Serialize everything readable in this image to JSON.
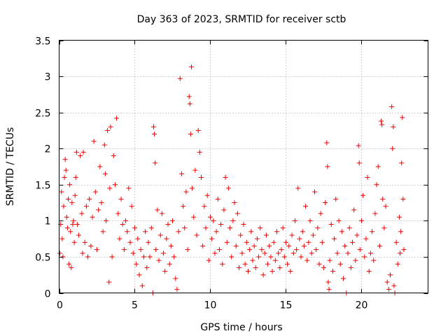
{
  "chart_data": {
    "type": "scatter",
    "title": "Day 363 of 2023, SRMTID for receiver sctb",
    "xlabel": "GPS time / hours",
    "ylabel": "SRMTID / TECUs",
    "xlim": [
      0,
      24.4
    ],
    "ylim": [
      0,
      3.5
    ],
    "xticks": [
      0,
      5,
      10,
      15,
      20
    ],
    "xtick_labels": [
      "0",
      "5",
      "10",
      "15",
      "20"
    ],
    "yticks": [
      0,
      0.5,
      1,
      1.5,
      2,
      2.5,
      3,
      3.5
    ],
    "ytick_labels": [
      "0",
      "0.5",
      "1",
      "1.5",
      "2",
      "2.5",
      "3",
      "3.5"
    ],
    "grid": true,
    "marker": "+",
    "color": "#ee0000",
    "series": [
      {
        "name": "sctb",
        "points": [
          [
            0.05,
            0.55
          ],
          [
            0.1,
            0.95
          ],
          [
            0.15,
            1.4
          ],
          [
            0.2,
            0.75
          ],
          [
            0.25,
            0.5
          ],
          [
            0.3,
            1.2
          ],
          [
            0.35,
            1.6
          ],
          [
            0.4,
            1.85
          ],
          [
            0.45,
            1.7
          ],
          [
            0.5,
            1.05
          ],
          [
            0.55,
            0.9
          ],
          [
            0.6,
            1.3
          ],
          [
            0.65,
            0.4
          ],
          [
            0.7,
            1.5
          ],
          [
            0.75,
            0.85
          ],
          [
            0.8,
            0.35
          ],
          [
            0.85,
            1.25
          ],
          [
            0.9,
            0.95
          ],
          [
            0.95,
            1.0
          ],
          [
            1.0,
            0.7
          ],
          [
            1.05,
            1.35
          ],
          [
            1.1,
            1.6
          ],
          [
            1.15,
            1.95
          ],
          [
            1.2,
            0.95
          ],
          [
            1.3,
            0.8
          ],
          [
            1.4,
            1.9
          ],
          [
            1.5,
            1.1
          ],
          [
            1.55,
            0.55
          ],
          [
            1.6,
            1.95
          ],
          [
            1.7,
            0.7
          ],
          [
            1.8,
            1.2
          ],
          [
            1.9,
            0.5
          ],
          [
            2.0,
            1.3
          ],
          [
            2.1,
            0.65
          ],
          [
            2.2,
            1.05
          ],
          [
            2.3,
            2.1
          ],
          [
            2.4,
            1.4
          ],
          [
            2.5,
            0.6
          ],
          [
            2.6,
            1.15
          ],
          [
            2.7,
            1.75
          ],
          [
            2.8,
            1.25
          ],
          [
            2.9,
            0.85
          ],
          [
            3.0,
            2.05
          ],
          [
            3.05,
            1.65
          ],
          [
            3.1,
            1.0
          ],
          [
            3.2,
            2.25
          ],
          [
            3.3,
            0.15
          ],
          [
            3.35,
            1.45
          ],
          [
            3.4,
            2.3
          ],
          [
            3.5,
            0.5
          ],
          [
            3.6,
            1.9
          ],
          [
            3.7,
            1.5
          ],
          [
            3.8,
            2.42
          ],
          [
            3.9,
            1.1
          ],
          [
            4.0,
            0.75
          ],
          [
            4.1,
            1.3
          ],
          [
            4.2,
            0.95
          ],
          [
            4.3,
            0.6
          ],
          [
            4.4,
            1.0
          ],
          [
            4.5,
            0.85
          ],
          [
            4.6,
            1.45
          ],
          [
            4.7,
            0.7
          ],
          [
            4.8,
            1.2
          ],
          [
            4.9,
            0.55
          ],
          [
            5.0,
            0.9
          ],
          [
            5.1,
            0.4
          ],
          [
            5.2,
            0.75
          ],
          [
            5.3,
            0.25
          ],
          [
            5.4,
            0.6
          ],
          [
            5.5,
            0.1
          ],
          [
            5.6,
            0.5
          ],
          [
            5.7,
            0.85
          ],
          [
            5.8,
            0.35
          ],
          [
            5.9,
            0.7
          ],
          [
            6.0,
            0.5
          ],
          [
            6.1,
            0.9
          ],
          [
            6.2,
            0.0
          ],
          [
            6.25,
            2.3
          ],
          [
            6.3,
            2.2
          ],
          [
            6.35,
            1.8
          ],
          [
            6.4,
            0.6
          ],
          [
            6.5,
            1.15
          ],
          [
            6.6,
            0.45
          ],
          [
            6.7,
            0.8
          ],
          [
            6.8,
            1.1
          ],
          [
            6.9,
            0.55
          ],
          [
            7.0,
            0.3
          ],
          [
            7.1,
            0.75
          ],
          [
            7.2,
            0.95
          ],
          [
            7.3,
            0.4
          ],
          [
            7.4,
            0.65
          ],
          [
            7.5,
            1.0
          ],
          [
            7.6,
            0.5
          ],
          [
            7.7,
            0.2
          ],
          [
            7.8,
            0.05
          ],
          [
            7.9,
            0.85
          ],
          [
            8.0,
            2.97
          ],
          [
            8.1,
            1.65
          ],
          [
            8.2,
            1.2
          ],
          [
            8.3,
            0.9
          ],
          [
            8.4,
            1.4
          ],
          [
            8.5,
            0.6
          ],
          [
            8.6,
            2.72
          ],
          [
            8.65,
            2.62
          ],
          [
            8.7,
            2.2
          ],
          [
            8.75,
            3.13
          ],
          [
            8.8,
            1.45
          ],
          [
            8.9,
            1.05
          ],
          [
            9.0,
            1.7
          ],
          [
            9.1,
            0.8
          ],
          [
            9.2,
            2.25
          ],
          [
            9.3,
            1.95
          ],
          [
            9.4,
            1.6
          ],
          [
            9.5,
            0.65
          ],
          [
            9.6,
            1.2
          ],
          [
            9.7,
            0.9
          ],
          [
            9.8,
            1.35
          ],
          [
            9.9,
            0.45
          ],
          [
            10.0,
            1.05
          ],
          [
            10.1,
            0.75
          ],
          [
            10.2,
            1.0
          ],
          [
            10.3,
            0.55
          ],
          [
            10.4,
            0.85
          ],
          [
            10.5,
            1.3
          ],
          [
            10.6,
            0.6
          ],
          [
            10.7,
            0.95
          ],
          [
            10.8,
            0.4
          ],
          [
            10.9,
            1.15
          ],
          [
            11.0,
            1.6
          ],
          [
            11.1,
            0.7
          ],
          [
            11.2,
            1.45
          ],
          [
            11.3,
            0.9
          ],
          [
            11.4,
            0.5
          ],
          [
            11.5,
            1.0
          ],
          [
            11.6,
            1.25
          ],
          [
            11.7,
            0.65
          ],
          [
            11.8,
            1.1
          ],
          [
            11.9,
            0.35
          ],
          [
            12.0,
            0.8
          ],
          [
            12.1,
            0.55
          ],
          [
            12.2,
            0.95
          ],
          [
            12.3,
            0.4
          ],
          [
            12.4,
            0.7
          ],
          [
            12.5,
            0.3
          ],
          [
            12.6,
            0.6
          ],
          [
            12.7,
            0.85
          ],
          [
            12.8,
            0.45
          ],
          [
            12.9,
            0.65
          ],
          [
            13.0,
            0.35
          ],
          [
            13.1,
            0.75
          ],
          [
            13.2,
            0.5
          ],
          [
            13.3,
            0.9
          ],
          [
            13.4,
            0.6
          ],
          [
            13.5,
            0.25
          ],
          [
            13.6,
            0.55
          ],
          [
            13.7,
            0.8
          ],
          [
            13.8,
            0.4
          ],
          [
            13.9,
            0.65
          ],
          [
            14.0,
            0.5
          ],
          [
            14.1,
            0.3
          ],
          [
            14.2,
            0.7
          ],
          [
            14.3,
            0.45
          ],
          [
            14.4,
            0.85
          ],
          [
            14.5,
            0.55
          ],
          [
            14.6,
            0.35
          ],
          [
            14.7,
            0.6
          ],
          [
            14.8,
            0.9
          ],
          [
            14.9,
            0.5
          ],
          [
            15.0,
            0.7
          ],
          [
            15.1,
            0.4
          ],
          [
            15.2,
            0.65
          ],
          [
            15.3,
            0.3
          ],
          [
            15.4,
            0.8
          ],
          [
            15.5,
            0.55
          ],
          [
            15.6,
            1.0
          ],
          [
            15.7,
            0.6
          ],
          [
            15.8,
            1.45
          ],
          [
            15.9,
            0.75
          ],
          [
            16.0,
            0.5
          ],
          [
            16.1,
            0.85
          ],
          [
            16.2,
            0.65
          ],
          [
            16.3,
            1.2
          ],
          [
            16.4,
            0.45
          ],
          [
            16.5,
            0.7
          ],
          [
            16.6,
            1.0
          ],
          [
            16.7,
            0.55
          ],
          [
            16.8,
            0.8
          ],
          [
            16.9,
            1.4
          ],
          [
            17.0,
            0.6
          ],
          [
            17.1,
            0.9
          ],
          [
            17.2,
            0.4
          ],
          [
            17.3,
            1.1
          ],
          [
            17.4,
            0.7
          ],
          [
            17.5,
            0.35
          ],
          [
            17.6,
            1.25
          ],
          [
            17.7,
            2.08
          ],
          [
            17.75,
            1.75
          ],
          [
            17.8,
            0.15
          ],
          [
            17.85,
            0.05
          ],
          [
            17.9,
            0.45
          ],
          [
            18.0,
            0.95
          ],
          [
            18.1,
            0.3
          ],
          [
            18.2,
            0.75
          ],
          [
            18.3,
            1.3
          ],
          [
            18.4,
            0.55
          ],
          [
            18.5,
            1.0
          ],
          [
            18.6,
            0.4
          ],
          [
            18.7,
            0.85
          ],
          [
            18.8,
            0.2
          ],
          [
            18.9,
            0.65
          ],
          [
            19.0,
            0.0
          ],
          [
            19.1,
            0.55
          ],
          [
            19.2,
            0.9
          ],
          [
            19.3,
            0.35
          ],
          [
            19.4,
            0.7
          ],
          [
            19.5,
            1.15
          ],
          [
            19.6,
            0.45
          ],
          [
            19.7,
            0.8
          ],
          [
            19.8,
            2.04
          ],
          [
            19.85,
            1.8
          ],
          [
            19.9,
            0.6
          ],
          [
            20.0,
            1.0
          ],
          [
            20.1,
            1.35
          ],
          [
            20.2,
            0.5
          ],
          [
            20.3,
            0.75
          ],
          [
            20.4,
            1.6
          ],
          [
            20.5,
            0.3
          ],
          [
            20.6,
            0.55
          ],
          [
            20.7,
            0.85
          ],
          [
            20.8,
            0.45
          ],
          [
            20.9,
            1.1
          ],
          [
            21.0,
            1.5
          ],
          [
            21.1,
            1.75
          ],
          [
            21.2,
            0.65
          ],
          [
            21.3,
            2.38
          ],
          [
            21.35,
            2.33
          ],
          [
            21.4,
            1.3
          ],
          [
            21.5,
            0.9
          ],
          [
            21.6,
            1.2
          ],
          [
            21.7,
            0.15
          ],
          [
            21.8,
            0.05
          ],
          [
            21.9,
            0.25
          ],
          [
            22.0,
            2.58
          ],
          [
            22.05,
            2.0
          ],
          [
            22.1,
            2.3
          ],
          [
            22.15,
            0.1
          ],
          [
            22.2,
            0.0
          ],
          [
            22.3,
            0.7
          ],
          [
            22.4,
            0.4
          ],
          [
            22.5,
            1.05
          ],
          [
            22.55,
            0.55
          ],
          [
            22.6,
            0.85
          ],
          [
            22.65,
            1.8
          ],
          [
            22.7,
            2.43
          ],
          [
            22.75,
            1.3
          ],
          [
            22.8,
            0.6
          ]
        ]
      }
    ]
  }
}
